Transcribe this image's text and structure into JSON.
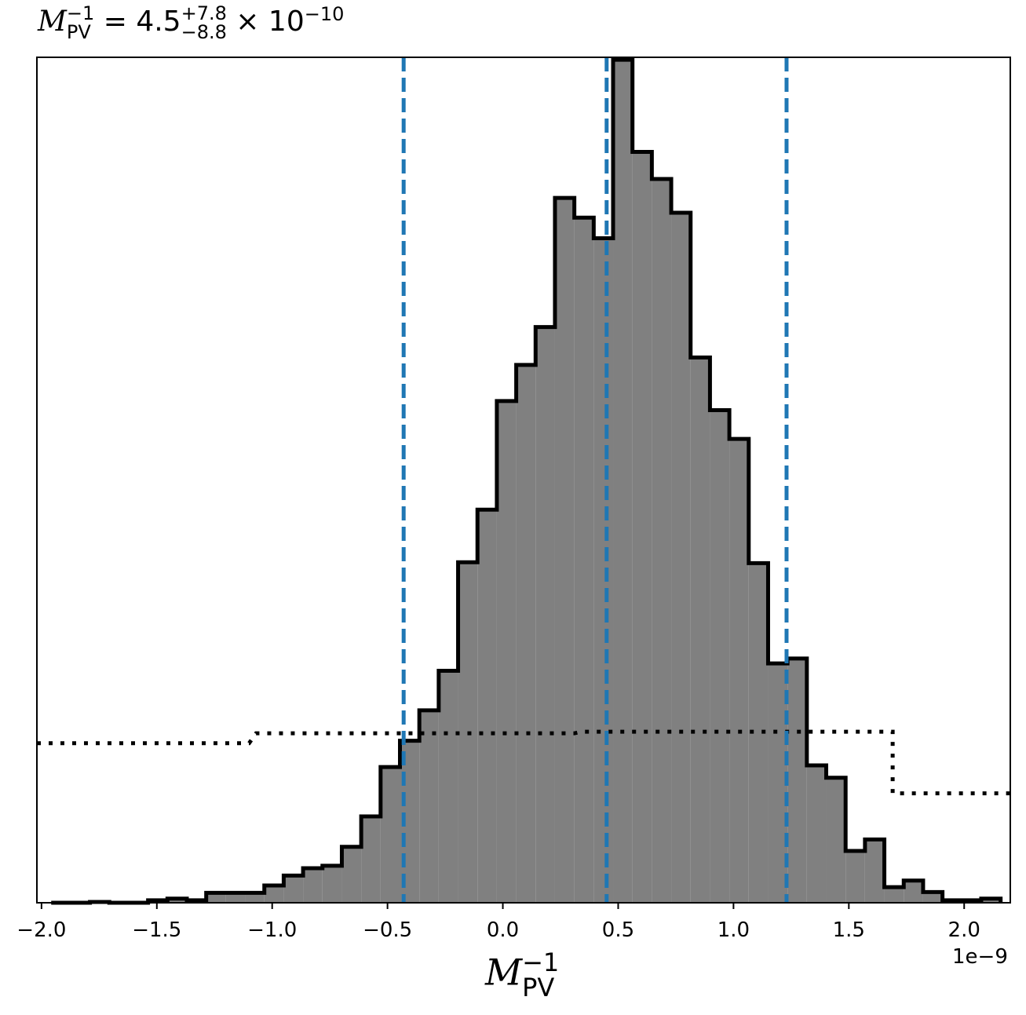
{
  "chart_data": {
    "type": "histogram",
    "title": {
      "symbol": "M",
      "symbol_sub": "PV",
      "symbol_sup": "−1",
      "eq": " = 4.5",
      "err_plus": "+7.8",
      "err_minus": "−8.8",
      "times": " × 10",
      "exponent": "−10"
    },
    "xlabel": {
      "symbol": "M",
      "sub": "PV",
      "sup": "−1"
    },
    "offset_text": "1e−9",
    "xlim": [
      -2.02,
      2.2
    ],
    "ylim": [
      0,
      1028
    ],
    "xticks": [
      -2.0,
      -1.5,
      -1.0,
      -0.5,
      0.0,
      0.5,
      1.0,
      1.5,
      2.0
    ],
    "xtick_labels": [
      "−2.0",
      "−1.5",
      "−1.0",
      "−0.5",
      "0.0",
      "0.5",
      "1.0",
      "1.5",
      "2.0"
    ],
    "bin_edges": [
      -1.958,
      -1.874,
      -1.79,
      -1.706,
      -1.622,
      -1.538,
      -1.454,
      -1.37,
      -1.286,
      -1.202,
      -1.118,
      -1.034,
      -0.95,
      -0.866,
      -0.782,
      -0.698,
      -0.614,
      -0.53,
      -0.446,
      -0.362,
      -0.278,
      -0.194,
      -0.11,
      -0.026,
      0.058,
      0.142,
      0.226,
      0.31,
      0.394,
      0.478,
      0.562,
      0.646,
      0.73,
      0.814,
      0.898,
      0.982,
      1.066,
      1.15,
      1.234,
      1.318,
      1.402,
      1.486,
      1.57,
      1.654,
      1.738,
      1.822,
      1.906,
      1.99,
      2.074,
      2.158
    ],
    "counts": [
      0,
      0,
      1,
      0,
      0,
      3,
      5,
      3,
      12,
      12,
      12,
      21,
      33,
      42,
      45,
      68,
      105,
      165,
      197,
      234,
      282,
      414,
      478,
      610,
      654,
      700,
      857,
      833,
      808,
      1025,
      913,
      880,
      839,
      663,
      599,
      564,
      413,
      291,
      297,
      167,
      152,
      63,
      77,
      19,
      27,
      13,
      3,
      3,
      5
    ],
    "hist_color": "#808080",
    "edge_color": "#000000",
    "quantiles": [
      -0.43,
      0.45,
      1.23
    ],
    "quantile_color": "#1f77b4",
    "prior_steps": {
      "x": [
        -2.02,
        -1.1,
        -1.07,
        0.31,
        0.34,
        1.69,
        1.69,
        2.2
      ],
      "y": [
        194,
        194,
        206,
        206,
        208,
        208,
        133,
        133
      ]
    }
  }
}
